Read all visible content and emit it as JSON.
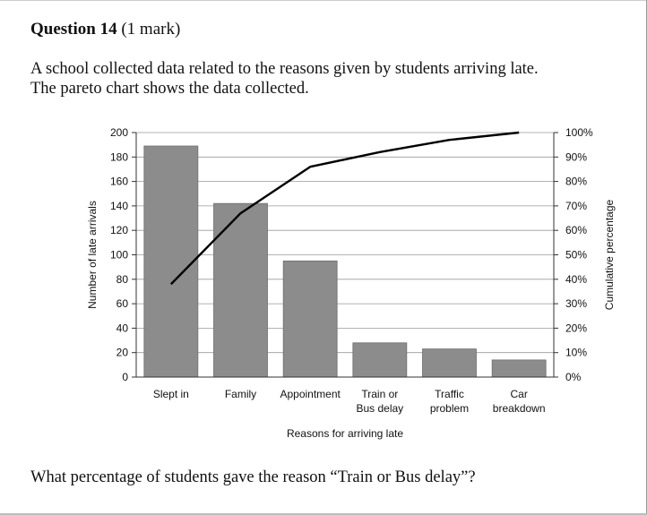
{
  "header": {
    "question_label": "Question 14",
    "marks": "(1 mark)"
  },
  "intro": {
    "line1": "A school collected data related to the reasons given by students arriving late.",
    "line2": "The pareto chart shows the data collected."
  },
  "question_text": "What percentage of students gave the reason “Train or Bus delay”?",
  "chart_data": {
    "type": "bar",
    "title": "",
    "xlabel": "Reasons for arriving late",
    "ylabel": "Number of late arrivals",
    "y2label": "Cumulative percentage",
    "categories": [
      [
        "Slept in"
      ],
      [
        "Family"
      ],
      [
        "Appointment"
      ],
      [
        "Train or",
        "Bus delay"
      ],
      [
        "Traffic",
        "problem"
      ],
      [
        "Car",
        "breakdown"
      ]
    ],
    "values": [
      189,
      142,
      95,
      28,
      23,
      14
    ],
    "cumulative_percent": [
      38,
      67,
      86,
      92,
      97,
      100
    ],
    "ylim": [
      0,
      200
    ],
    "yticks": [
      0,
      20,
      40,
      60,
      80,
      100,
      120,
      140,
      160,
      180,
      200
    ],
    "y2lim": [
      0,
      100
    ],
    "y2ticks": [
      "0%",
      "10%",
      "20%",
      "30%",
      "40%",
      "50%",
      "60%",
      "70%",
      "80%",
      "90%",
      "100%"
    ],
    "grid": true,
    "bar_color": "#8c8c8c",
    "line_color": "#000000"
  }
}
